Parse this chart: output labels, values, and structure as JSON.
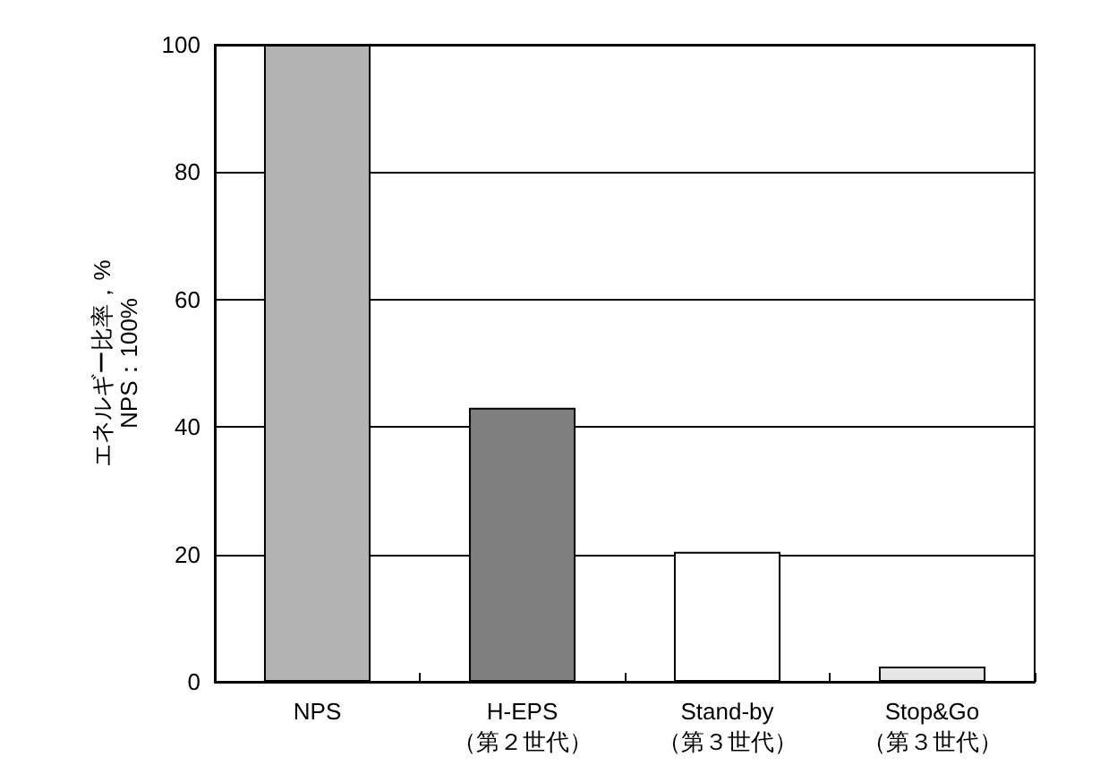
{
  "chart_data": {
    "type": "bar",
    "ylabel": "エネルギー比率，%\nNPS：100%",
    "categories": [
      "NPS",
      "H-EPS\n（第２世代）",
      "Stand-by\n（第３世代）",
      "Stop&Go\n（第３世代）"
    ],
    "values": [
      100,
      43,
      20.4,
      2.4
    ],
    "colors": [
      "#b3b3b3",
      "#7f7f7f",
      "#ffffff",
      "#e6e6e6"
    ],
    "ylim": [
      0,
      100
    ],
    "yticks": [
      0,
      20,
      40,
      60,
      80,
      100
    ],
    "grid": "y"
  }
}
